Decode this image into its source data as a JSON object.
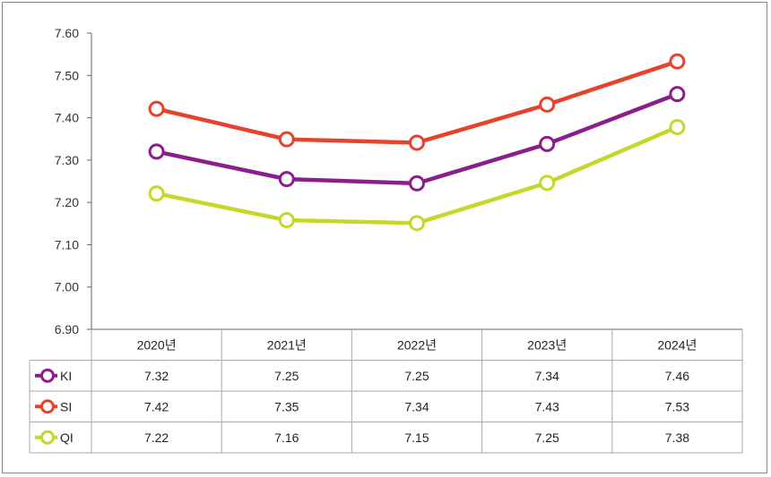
{
  "chart_data": {
    "type": "line",
    "categories": [
      "2020년",
      "2021년",
      "2022년",
      "2023년",
      "2024년"
    ],
    "ylim": [
      6.9,
      7.6
    ],
    "yticks": [
      "7.60",
      "7.50",
      "7.40",
      "7.30",
      "7.20",
      "7.10",
      "7.00",
      "6.90"
    ],
    "grid": false,
    "legend": "data-table-left",
    "series": [
      {
        "name": "KI",
        "color": "#8B1E8C",
        "values": [
          7.32,
          7.25,
          7.25,
          7.34,
          7.46
        ],
        "labels": [
          "7.32",
          "7.25",
          "7.25",
          "7.34",
          "7.46"
        ],
        "plot": [
          7.32,
          7.255,
          7.245,
          7.338,
          7.456
        ]
      },
      {
        "name": "SI",
        "color": "#E8412C",
        "values": [
          7.42,
          7.35,
          7.34,
          7.43,
          7.53
        ],
        "labels": [
          "7.42",
          "7.35",
          "7.34",
          "7.43",
          "7.53"
        ],
        "plot": [
          7.421,
          7.349,
          7.341,
          7.431,
          7.533
        ]
      },
      {
        "name": "QI",
        "color": "#C5D829",
        "values": [
          7.22,
          7.16,
          7.15,
          7.25,
          7.38
        ],
        "labels": [
          "7.22",
          "7.16",
          "7.15",
          "7.25",
          "7.38"
        ],
        "plot": [
          7.221,
          7.158,
          7.151,
          7.246,
          7.378
        ]
      }
    ]
  }
}
